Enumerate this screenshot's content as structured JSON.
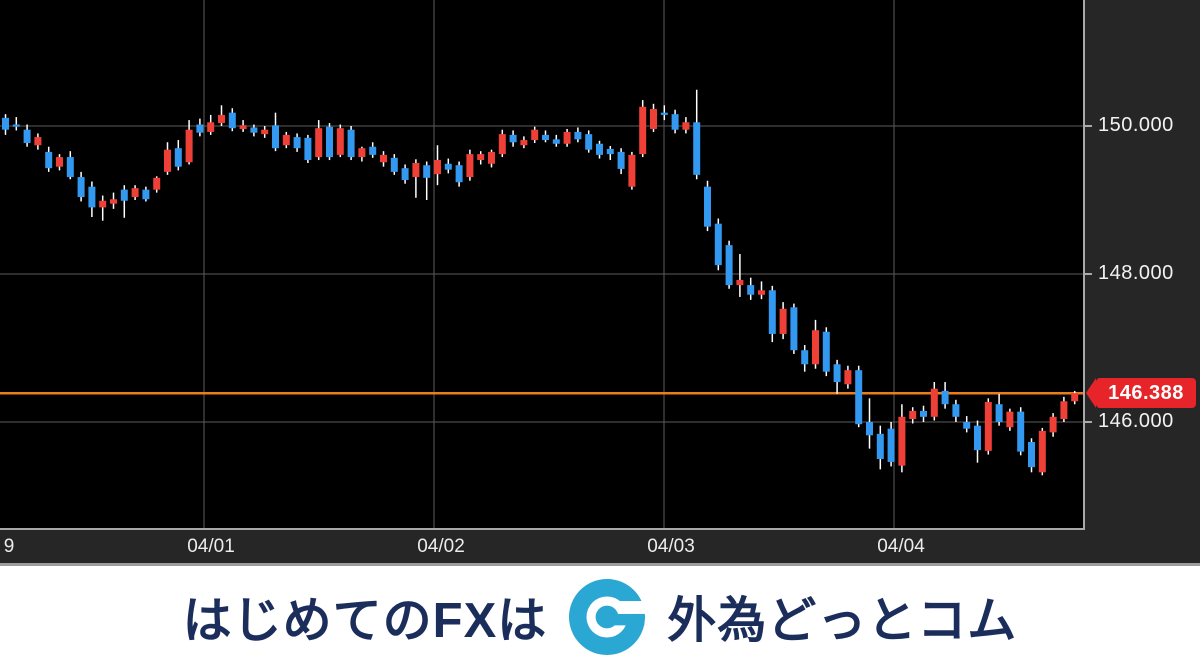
{
  "chart_data": {
    "type": "candlestick",
    "title": "",
    "left_edge_label": "9",
    "x_labels": [
      "04/01",
      "04/02",
      "04/03",
      "04/04"
    ],
    "y_ticks": [
      {
        "label": "150.000",
        "price": 150.0
      },
      {
        "label": "148.000",
        "price": 148.0
      },
      {
        "label": "146.000",
        "price": 146.0
      }
    ],
    "current_price": 146.388,
    "current_price_label": "146.388",
    "ylim": [
      144.9,
      150.7
    ],
    "grid": true,
    "legend_position": "none",
    "colors": {
      "up_candle": "#ef4037",
      "down_candle": "#3398f0",
      "wick": "#ffffff",
      "grid": "#5c5c5c",
      "current_price_line": "#ec7d1d",
      "badge": "#e62429",
      "plot_background": "#000000",
      "axis_panel_background": "#262626",
      "axis_text": "#f2f2f2"
    },
    "candles": [
      [
        150.11,
        150.16,
        149.88,
        149.95
      ],
      [
        150.02,
        150.12,
        149.94,
        149.99
      ],
      [
        149.95,
        150.02,
        149.72,
        149.77
      ],
      [
        149.74,
        149.9,
        149.68,
        149.85
      ],
      [
        149.65,
        149.72,
        149.38,
        149.43
      ],
      [
        149.45,
        149.62,
        149.4,
        149.58
      ],
      [
        149.58,
        149.66,
        149.28,
        149.31
      ],
      [
        149.31,
        149.38,
        148.98,
        149.04
      ],
      [
        149.18,
        149.25,
        148.77,
        148.9
      ],
      [
        148.9,
        149.06,
        148.72,
        148.99
      ],
      [
        148.95,
        149.1,
        148.88,
        149.01
      ],
      [
        149.14,
        149.2,
        148.76,
        148.99
      ],
      [
        149.04,
        149.2,
        149.0,
        149.16
      ],
      [
        149.14,
        149.18,
        148.98,
        149.01
      ],
      [
        149.14,
        149.32,
        149.1,
        149.3
      ],
      [
        149.38,
        149.78,
        149.34,
        149.68
      ],
      [
        149.7,
        149.81,
        149.4,
        149.45
      ],
      [
        149.51,
        150.08,
        149.48,
        149.95
      ],
      [
        150.02,
        150.1,
        149.86,
        149.91
      ],
      [
        149.92,
        150.15,
        149.88,
        150.05
      ],
      [
        150.04,
        150.28,
        150.0,
        150.15
      ],
      [
        150.18,
        150.24,
        149.93,
        149.97
      ],
      [
        149.96,
        150.08,
        149.92,
        150.01
      ],
      [
        149.98,
        150.02,
        149.86,
        149.91
      ],
      [
        149.89,
        150.0,
        149.84,
        149.95
      ],
      [
        150.01,
        150.18,
        149.66,
        149.7
      ],
      [
        149.74,
        149.92,
        149.7,
        149.88
      ],
      [
        149.85,
        149.9,
        149.65,
        149.7
      ],
      [
        149.84,
        149.88,
        149.5,
        149.54
      ],
      [
        149.58,
        150.08,
        149.54,
        149.97
      ],
      [
        149.99,
        150.04,
        149.54,
        149.58
      ],
      [
        149.61,
        150.02,
        149.58,
        149.97
      ],
      [
        149.95,
        150.0,
        149.54,
        149.58
      ],
      [
        149.58,
        149.72,
        149.52,
        149.7
      ],
      [
        149.72,
        149.78,
        149.57,
        149.61
      ],
      [
        149.51,
        149.66,
        149.45,
        149.61
      ],
      [
        149.57,
        149.62,
        149.34,
        149.38
      ],
      [
        149.43,
        149.48,
        149.22,
        149.27
      ],
      [
        149.31,
        149.55,
        149.03,
        149.5
      ],
      [
        149.47,
        149.52,
        149.0,
        149.3
      ],
      [
        149.35,
        149.74,
        149.2,
        149.54
      ],
      [
        149.49,
        149.56,
        149.36,
        149.41
      ],
      [
        149.47,
        149.52,
        149.18,
        149.24
      ],
      [
        149.31,
        149.68,
        149.26,
        149.62
      ],
      [
        149.54,
        149.66,
        149.48,
        149.62
      ],
      [
        149.49,
        149.68,
        149.44,
        149.65
      ],
      [
        149.62,
        149.95,
        149.58,
        149.89
      ],
      [
        149.88,
        149.94,
        149.72,
        149.78
      ],
      [
        149.74,
        149.86,
        149.7,
        149.81
      ],
      [
        149.81,
        149.99,
        149.77,
        149.95
      ],
      [
        149.88,
        149.94,
        149.78,
        149.81
      ],
      [
        149.82,
        149.88,
        149.72,
        149.76
      ],
      [
        149.76,
        149.96,
        149.72,
        149.92
      ],
      [
        149.92,
        149.98,
        149.78,
        149.82
      ],
      [
        149.89,
        149.94,
        149.64,
        149.68
      ],
      [
        149.76,
        149.8,
        149.56,
        149.61
      ],
      [
        149.69,
        149.73,
        149.54,
        149.62
      ],
      [
        149.65,
        149.7,
        149.35,
        149.42
      ],
      [
        149.18,
        149.65,
        149.14,
        149.61
      ],
      [
        149.62,
        150.35,
        149.58,
        150.26
      ],
      [
        149.96,
        150.3,
        149.92,
        150.23
      ],
      [
        150.18,
        150.28,
        150.08,
        150.15
      ],
      [
        150.16,
        150.22,
        149.9,
        149.95
      ],
      [
        149.95,
        150.12,
        149.9,
        150.05
      ],
      [
        150.05,
        150.49,
        149.28,
        149.34
      ],
      [
        149.18,
        149.26,
        148.58,
        148.64
      ],
      [
        148.68,
        148.75,
        148.05,
        148.12
      ],
      [
        148.39,
        148.45,
        147.8,
        147.85
      ],
      [
        147.85,
        148.27,
        147.69,
        147.92
      ],
      [
        147.85,
        147.95,
        147.65,
        147.72
      ],
      [
        147.72,
        147.9,
        147.66,
        147.78
      ],
      [
        147.78,
        147.84,
        147.08,
        147.19
      ],
      [
        147.19,
        147.62,
        147.12,
        147.53
      ],
      [
        147.55,
        147.6,
        146.92,
        146.97
      ],
      [
        146.97,
        147.04,
        146.68,
        146.78
      ],
      [
        146.78,
        147.38,
        146.72,
        147.24
      ],
      [
        147.22,
        147.28,
        146.62,
        146.68
      ],
      [
        146.78,
        146.84,
        146.38,
        146.54
      ],
      [
        146.51,
        146.76,
        146.45,
        146.7
      ],
      [
        146.7,
        146.76,
        145.93,
        145.97
      ],
      [
        146.0,
        146.32,
        145.64,
        145.82
      ],
      [
        145.84,
        145.95,
        145.36,
        145.5
      ],
      [
        145.91,
        146.0,
        145.4,
        145.46
      ],
      [
        145.41,
        146.24,
        145.32,
        146.07
      ],
      [
        146.04,
        146.2,
        145.98,
        146.15
      ],
      [
        146.15,
        146.22,
        146.0,
        146.07
      ],
      [
        146.07,
        146.54,
        146.02,
        146.45
      ],
      [
        146.42,
        146.54,
        146.18,
        146.24
      ],
      [
        146.24,
        146.3,
        146.0,
        146.07
      ],
      [
        146.0,
        146.08,
        145.86,
        145.91
      ],
      [
        145.95,
        146.02,
        145.45,
        145.62
      ],
      [
        145.61,
        146.32,
        145.56,
        146.27
      ],
      [
        146.24,
        146.38,
        145.95,
        146.0
      ],
      [
        145.93,
        146.18,
        145.88,
        146.14
      ],
      [
        146.14,
        146.2,
        145.55,
        145.6
      ],
      [
        145.73,
        145.78,
        145.32,
        145.39
      ],
      [
        145.32,
        145.92,
        145.28,
        145.88
      ],
      [
        145.86,
        146.12,
        145.8,
        146.07
      ],
      [
        146.04,
        146.34,
        146.0,
        146.28
      ],
      [
        146.28,
        146.42,
        146.24,
        146.39
      ]
    ]
  },
  "banner": {
    "text_left": "はじめてのFXは",
    "text_right": "外為どっとコム",
    "logo_icon": "gaitame-dot-com-logo",
    "brand_navy": "#1b2d5b",
    "brand_cyan": "#2ba7d3"
  }
}
